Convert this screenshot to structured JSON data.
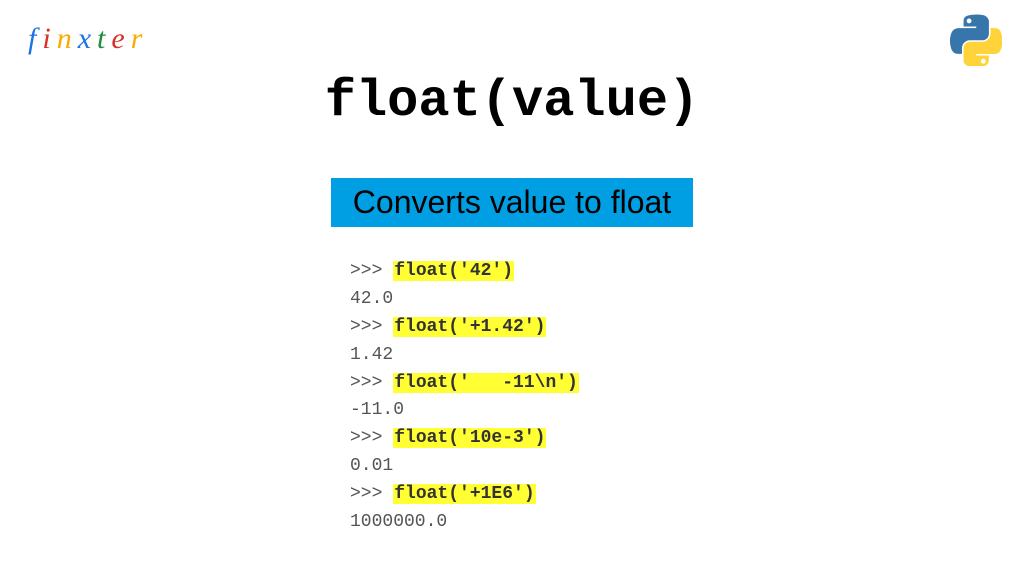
{
  "logo": {
    "letters": [
      "f",
      "i",
      "n",
      "x",
      "t",
      "e",
      "r"
    ],
    "colors": [
      "#1a73e8",
      "#d93025",
      "#f9ab00",
      "#1a73e8",
      "#1e8e3e",
      "#d93025",
      "#f9ab00"
    ]
  },
  "python_logo": {
    "top_color": "#3776ab",
    "bottom_color": "#ffd43b"
  },
  "title": "float(value)",
  "subtitle": {
    "text": "Converts value to float",
    "background": "#009fe3",
    "text_color": "#000000",
    "fontsize": 32
  },
  "code": {
    "prompt": ">>> ",
    "highlight_color": "#ffff33",
    "lines": [
      {
        "type": "input",
        "call": "float('42')"
      },
      {
        "type": "output",
        "text": "42.0"
      },
      {
        "type": "input",
        "call": "float('+1.42')"
      },
      {
        "type": "output",
        "text": "1.42"
      },
      {
        "type": "input",
        "call": "float('   -11\\n')"
      },
      {
        "type": "output",
        "text": "-11.0"
      },
      {
        "type": "input",
        "call": "float('10e-3')"
      },
      {
        "type": "output",
        "text": "0.01"
      },
      {
        "type": "input",
        "call": "float('+1E6')"
      },
      {
        "type": "output",
        "text": "1000000.0"
      }
    ],
    "font_family": "Courier New",
    "fontsize": 18
  },
  "colors": {
    "background": "#ffffff",
    "title_color": "#000000",
    "code_text": "#555555"
  }
}
